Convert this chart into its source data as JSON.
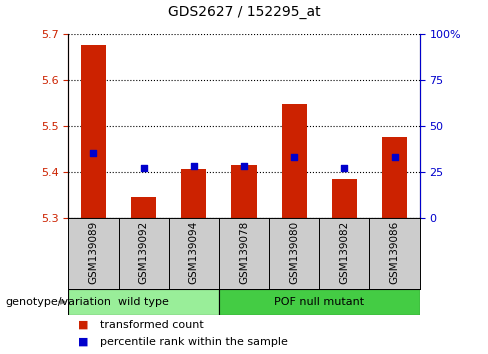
{
  "title": "GDS2627 / 152295_at",
  "samples": [
    "GSM139089",
    "GSM139092",
    "GSM139094",
    "GSM139078",
    "GSM139080",
    "GSM139082",
    "GSM139086"
  ],
  "transformed_counts": [
    5.675,
    5.345,
    5.405,
    5.415,
    5.548,
    5.385,
    5.475
  ],
  "percentile_ranks": [
    35,
    27,
    28,
    28,
    33,
    27,
    33
  ],
  "ylim_left": [
    5.3,
    5.7
  ],
  "ylim_right": [
    0,
    100
  ],
  "yticks_left": [
    5.3,
    5.4,
    5.5,
    5.6,
    5.7
  ],
  "yticks_right": [
    0,
    25,
    50,
    75,
    100
  ],
  "bar_color": "#cc2200",
  "dot_color": "#0000cc",
  "bar_bottom": 5.3,
  "groups": [
    {
      "label": "wild type",
      "indices": [
        0,
        1,
        2
      ],
      "color": "#99ee99"
    },
    {
      "label": "POF null mutant",
      "indices": [
        3,
        4,
        5,
        6
      ],
      "color": "#44cc44"
    }
  ],
  "group_label": "genotype/variation",
  "legend_bar": "transformed count",
  "legend_dot": "percentile rank within the sample",
  "left_tick_color": "#cc2200",
  "right_tick_color": "#0000cc",
  "label_bg_color": "#cccccc",
  "grid_color": "#000000",
  "bar_width": 0.5
}
